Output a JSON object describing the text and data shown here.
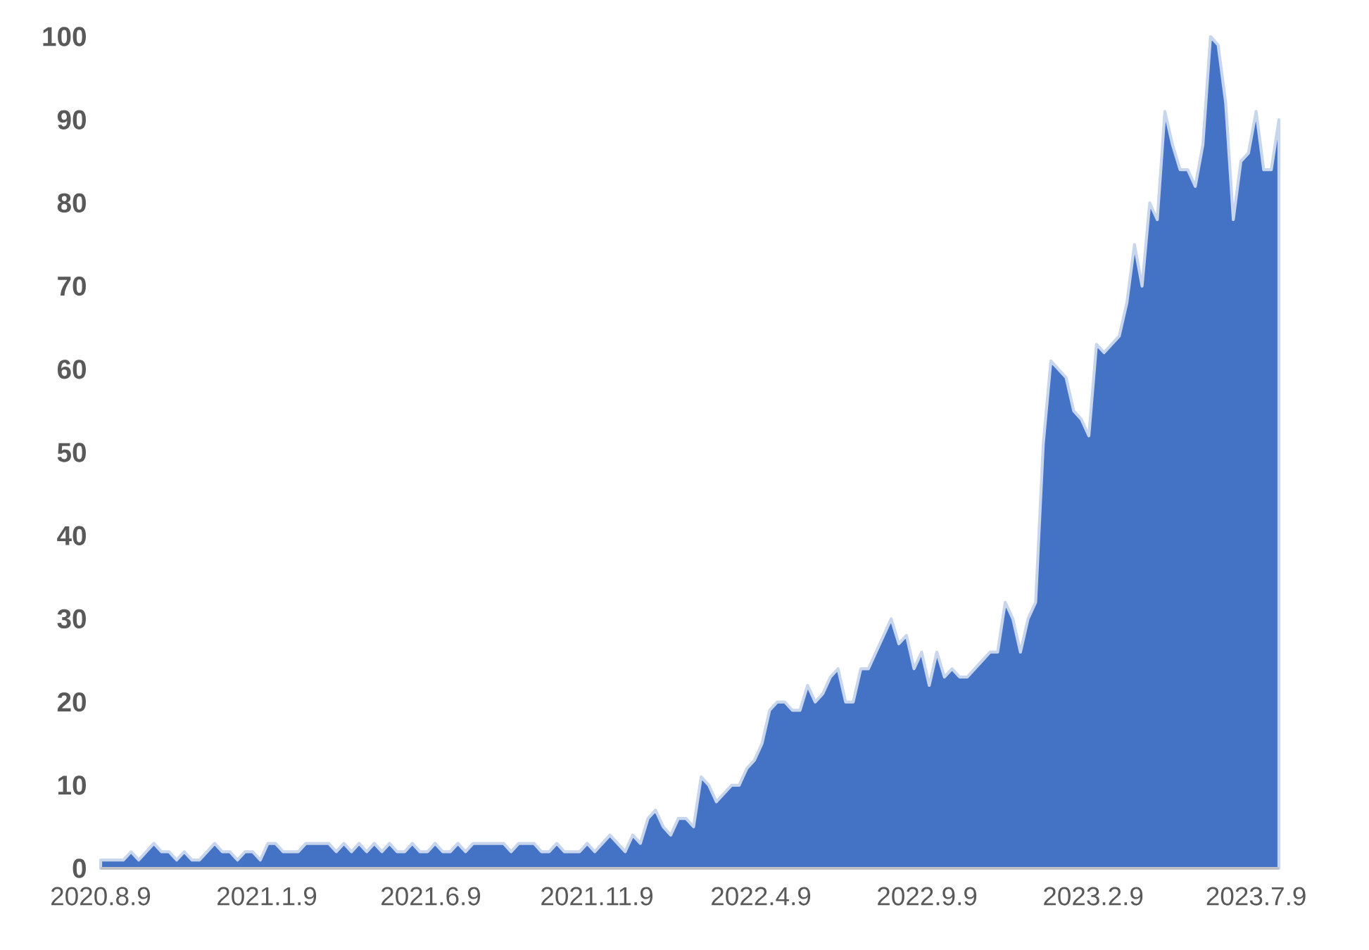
{
  "chart_data": {
    "type": "area",
    "color": "#4472c4",
    "x": [
      "2020-08-09",
      "2020-08-16",
      "2020-08-23",
      "2020-08-30",
      "2020-09-06",
      "2020-09-13",
      "2020-09-20",
      "2020-09-27",
      "2020-10-04",
      "2020-10-11",
      "2020-10-18",
      "2020-10-25",
      "2020-11-01",
      "2020-11-08",
      "2020-11-15",
      "2020-11-22",
      "2020-11-29",
      "2020-12-06",
      "2020-12-13",
      "2020-12-20",
      "2020-12-27",
      "2021-01-03",
      "2021-01-10",
      "2021-01-17",
      "2021-01-24",
      "2021-01-31",
      "2021-02-07",
      "2021-02-14",
      "2021-02-21",
      "2021-02-28",
      "2021-03-07",
      "2021-03-14",
      "2021-03-21",
      "2021-03-28",
      "2021-04-04",
      "2021-04-11",
      "2021-04-18",
      "2021-04-25",
      "2021-05-02",
      "2021-05-09",
      "2021-05-16",
      "2021-05-23",
      "2021-05-30",
      "2021-06-06",
      "2021-06-13",
      "2021-06-20",
      "2021-06-27",
      "2021-07-04",
      "2021-07-11",
      "2021-07-18",
      "2021-07-25",
      "2021-08-01",
      "2021-08-08",
      "2021-08-15",
      "2021-08-22",
      "2021-08-29",
      "2021-09-05",
      "2021-09-12",
      "2021-09-19",
      "2021-09-26",
      "2021-10-03",
      "2021-10-10",
      "2021-10-17",
      "2021-10-24",
      "2021-10-31",
      "2021-11-07",
      "2021-11-14",
      "2021-11-21",
      "2021-11-28",
      "2021-12-05",
      "2021-12-12",
      "2021-12-19",
      "2021-12-26",
      "2022-01-02",
      "2022-01-09",
      "2022-01-16",
      "2022-01-23",
      "2022-01-30",
      "2022-02-06",
      "2022-02-13",
      "2022-02-20",
      "2022-02-27",
      "2022-03-06",
      "2022-03-13",
      "2022-03-20",
      "2022-03-27",
      "2022-04-03",
      "2022-04-10",
      "2022-04-17",
      "2022-04-24",
      "2022-05-01",
      "2022-05-08",
      "2022-05-15",
      "2022-05-22",
      "2022-05-29",
      "2022-06-05",
      "2022-06-12",
      "2022-06-19",
      "2022-06-26",
      "2022-07-03",
      "2022-07-10",
      "2022-07-17",
      "2022-07-24",
      "2022-07-31",
      "2022-08-07",
      "2022-08-14",
      "2022-08-21",
      "2022-08-28",
      "2022-09-04",
      "2022-09-11",
      "2022-09-18",
      "2022-09-25",
      "2022-10-02",
      "2022-10-09",
      "2022-10-16",
      "2022-10-23",
      "2022-10-30",
      "2022-11-06",
      "2022-11-13",
      "2022-11-20",
      "2022-11-27",
      "2022-12-04",
      "2022-12-11",
      "2022-12-18",
      "2022-12-25",
      "2023-01-01",
      "2023-01-08",
      "2023-01-15",
      "2023-01-22",
      "2023-01-29",
      "2023-02-05",
      "2023-02-12",
      "2023-02-19",
      "2023-02-26",
      "2023-03-05",
      "2023-03-12",
      "2023-03-19",
      "2023-03-26",
      "2023-04-02",
      "2023-04-09",
      "2023-04-16",
      "2023-04-23",
      "2023-04-30",
      "2023-05-07",
      "2023-05-14",
      "2023-05-21",
      "2023-05-28",
      "2023-06-04",
      "2023-06-11",
      "2023-06-18",
      "2023-06-25",
      "2023-07-02",
      "2023-07-09",
      "2023-07-16",
      "2023-07-23",
      "2023-07-30"
    ],
    "values": [
      1,
      1,
      1,
      1,
      2,
      1,
      2,
      3,
      2,
      2,
      1,
      2,
      1,
      1,
      2,
      3,
      2,
      2,
      1,
      2,
      2,
      1,
      3,
      3,
      2,
      2,
      2,
      3,
      3,
      3,
      3,
      2,
      3,
      2,
      3,
      2,
      3,
      2,
      3,
      2,
      2,
      3,
      2,
      2,
      3,
      2,
      2,
      3,
      2,
      3,
      3,
      3,
      3,
      3,
      2,
      3,
      3,
      3,
      2,
      2,
      3,
      2,
      2,
      2,
      3,
      2,
      3,
      4,
      3,
      2,
      4,
      3,
      6,
      7,
      5,
      4,
      6,
      6,
      5,
      11,
      10,
      8,
      9,
      10,
      10,
      12,
      13,
      15,
      19,
      20,
      20,
      19,
      19,
      22,
      20,
      21,
      23,
      24,
      20,
      20,
      24,
      24,
      26,
      28,
      30,
      27,
      28,
      24,
      26,
      22,
      26,
      23,
      24,
      23,
      23,
      24,
      25,
      26,
      26,
      32,
      30,
      26,
      30,
      32,
      51,
      61,
      60,
      59,
      55,
      54,
      52,
      63,
      62,
      63,
      64,
      68,
      75,
      70,
      80,
      78,
      91,
      87,
      84,
      84,
      82,
      87,
      100,
      99,
      92,
      78,
      85,
      86,
      91,
      84,
      84,
      90
    ],
    "xlim": [
      "2020-08-09",
      "2023-07-30"
    ],
    "xticks": [
      {
        "value": "2020-08-09",
        "label": "2020.8.9"
      },
      {
        "value": "2021-01-09",
        "label": "2021.1.9"
      },
      {
        "value": "2021-06-09",
        "label": "2021.6.9"
      },
      {
        "value": "2021-11-09",
        "label": "2021.11.9"
      },
      {
        "value": "2022-04-09",
        "label": "2022.4.9"
      },
      {
        "value": "2022-09-09",
        "label": "2022.9.9"
      },
      {
        "value": "2023-02-09",
        "label": "2023.2.9"
      },
      {
        "value": "2023-07-09",
        "label": "2023.7.9"
      }
    ],
    "ylim": [
      0,
      100
    ],
    "yticks": [
      0,
      10,
      20,
      30,
      40,
      50,
      60,
      70,
      80,
      90,
      100
    ]
  }
}
